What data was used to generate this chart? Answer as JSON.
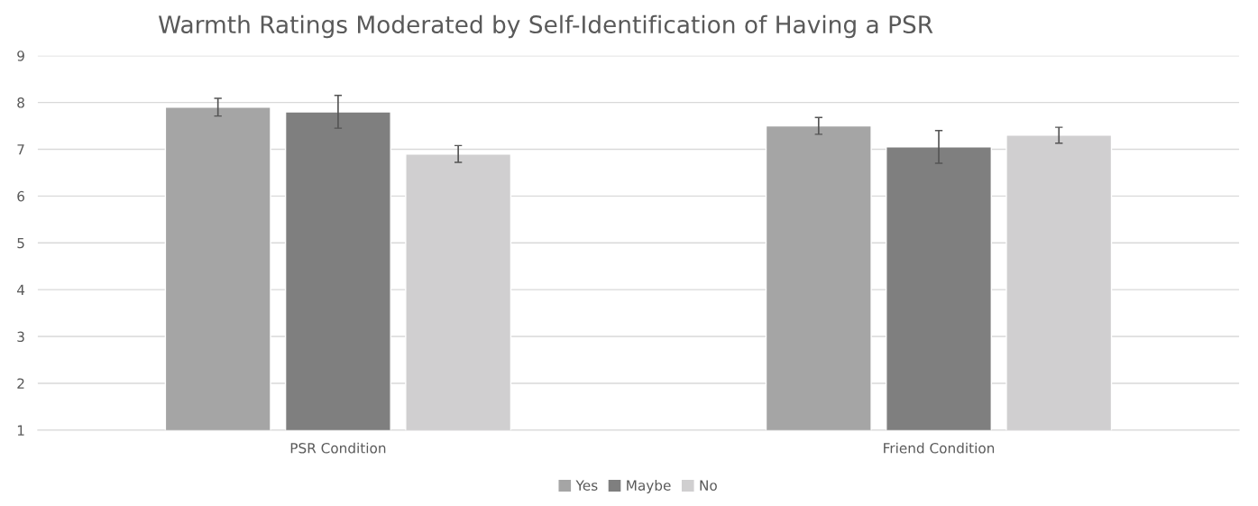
{
  "chart_data": {
    "type": "bar",
    "title": "Warmth Ratings Moderated by Self-Identification of Having a PSR",
    "categories": [
      "PSR Condition",
      "Friend Condition"
    ],
    "series": [
      {
        "name": "Yes",
        "color": "#a5a5a5",
        "values": [
          7.9,
          7.5
        ],
        "errors": [
          0.19,
          0.18
        ]
      },
      {
        "name": "Maybe",
        "color": "#7f7f7f",
        "values": [
          7.8,
          7.05
        ],
        "errors": [
          0.35,
          0.35
        ]
      },
      {
        "name": "No",
        "color": "#d0cfd0",
        "values": [
          6.9,
          7.3
        ],
        "errors": [
          0.18,
          0.17
        ]
      }
    ],
    "ylim": [
      1,
      9
    ],
    "yticks": [
      1,
      2,
      3,
      4,
      5,
      6,
      7,
      8,
      9
    ],
    "grid": "y",
    "legend": "bottom"
  }
}
